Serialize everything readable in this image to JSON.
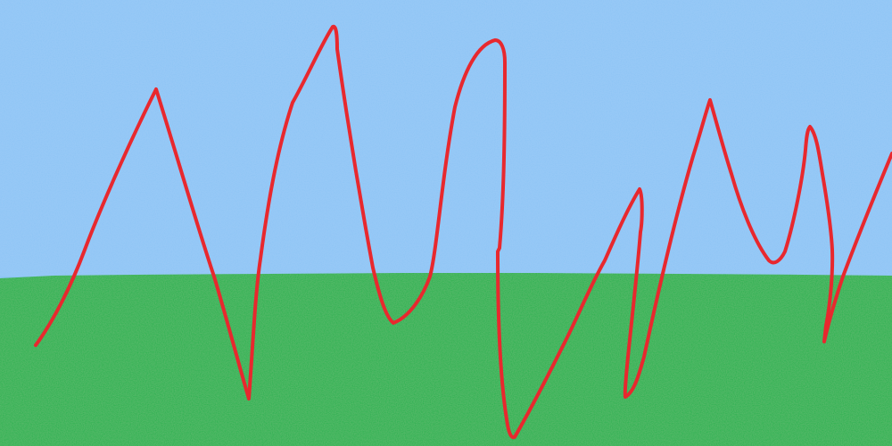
{
  "scene": {
    "sky": {
      "color": "#8cc4f5"
    },
    "grass": {
      "color": "#22b14c"
    },
    "scribble": {
      "color": "#e8282e"
    }
  }
}
